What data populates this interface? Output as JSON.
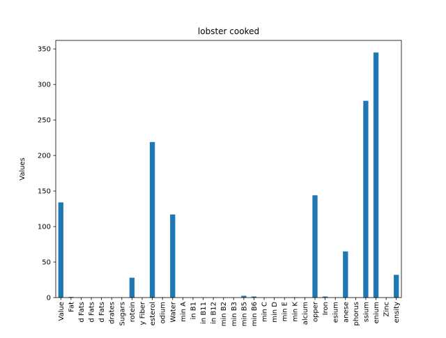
{
  "chart_data": {
    "type": "bar",
    "title": "lobster cooked",
    "xlabel": "",
    "ylabel": "Values",
    "ylim": [
      0,
      362
    ],
    "yticks": [
      0,
      50,
      100,
      150,
      200,
      250,
      300,
      350
    ],
    "grid": false,
    "legend": "none",
    "bar_color": "#1f77b4",
    "categories": [
      "Value",
      "Fat",
      "d Fats",
      "d Fats",
      "d Fats",
      "drates",
      "Sugars",
      "rotein",
      "y Fiber",
      "esterol",
      "odium",
      "Water",
      "min A",
      "in B1",
      "in B11",
      "in B12",
      "min B2",
      "min B3",
      "min B5",
      "min B6",
      "min C",
      "min D",
      "min E",
      "min K",
      "alcium",
      "opper",
      "Iron",
      "esium",
      "anese",
      "phorus",
      "ssium",
      "enium",
      "Zinc",
      "ensity"
    ],
    "values": [
      134,
      0.9,
      0.2,
      0.1,
      0.1,
      0,
      0,
      28,
      0,
      219,
      0.5,
      117,
      0,
      0,
      0,
      0,
      0,
      0,
      2.5,
      1.5,
      0,
      0,
      0,
      0.5,
      0,
      144,
      1.5,
      0,
      65,
      0,
      277,
      345,
      0,
      32
    ]
  }
}
